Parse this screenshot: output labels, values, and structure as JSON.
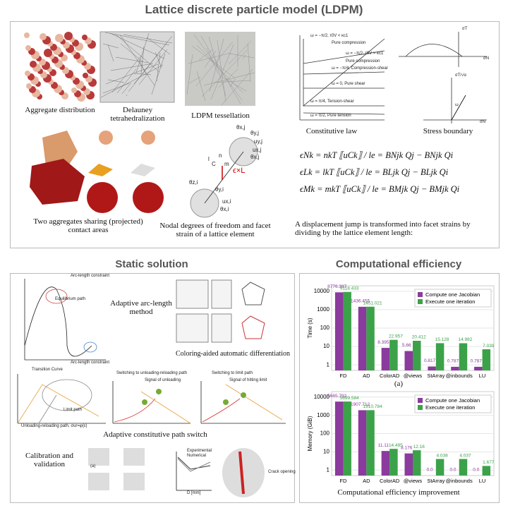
{
  "title": "Lattice discrete particle model (LDPM)",
  "ldpm": {
    "aggregate_distribution": "Aggregate distribution",
    "delauney": "Delauney tetrahedralization",
    "tessellation": "LDPM tessellation",
    "constitutive_law": "Constitutive law",
    "stress_boundary": "Stress boundary",
    "two_aggregates": "Two aggregates sharing (projected) contact areas",
    "nodal_dof": "Nodal degrees of freedom and facet strain of a lattice element",
    "law_labels": [
      "ω = −π/2, τ0V < κc1",
      "Pure compression",
      "ω = −π/2, τ0V > κc1",
      "Pure compression",
      "ω = −π/4, Compression-shear",
      "ω = 0, Pure shear",
      "ω = π/4, Tension-shear",
      "ω = π/2, Pure tension"
    ],
    "stress_labels": [
      "σT",
      "σN",
      "σT/√α",
      "σN",
      "ω"
    ],
    "element_labels": [
      "θx,j",
      "θy,j",
      "uy,j",
      "ux,j",
      "θx,j",
      "ϵ×L",
      "θz,i",
      "θy,i",
      "ux,i",
      "θx,i",
      "l",
      "n",
      "C",
      "m"
    ],
    "equations": [
      "ϵNk = nkT ⟦uCk⟧ / le = BNjk Qj − BNjk Qi",
      "ϵLk = lkT ⟦uCk⟧ / le = BLjk Qj − BLjk Qi",
      "ϵMk = mkT ⟦uCk⟧ / le = BMjk Qj − BMjk Qi"
    ],
    "note": "A displacement jump is transformed into facet strains by dividing by the lattice element length:"
  },
  "static_solution": {
    "title": "Static solution",
    "arc_length": "Adaptive arc-length method",
    "coloring": "Coloring-aided automatic differentiation",
    "path_switch": "Adaptive constitutive path switch",
    "calibration": "Calibration and validation",
    "small_labels": [
      "Arc-length constraint",
      "Equilibrium path",
      "Arc-length constraint",
      "Transition Curve",
      "Limit path",
      "Unloading-reloading path, σur=φ(ε)",
      "Switching to unloading-reloading path",
      "Signal of unloading",
      "Switching to limit path",
      "Signal of hitting limit",
      "Experimental",
      "Numerical",
      "D [mm]",
      "Crack opening",
      "(a)"
    ]
  },
  "computational_efficiency": {
    "title": "Computational efficiency",
    "caption_a": "(a)",
    "caption": "Computational efficiency improvement",
    "chart_data": [
      {
        "type": "bar",
        "y_label": "Time (s)",
        "log_scale": true,
        "ylim": [
          0.5,
          20000
        ],
        "yticks": [
          1,
          10,
          100,
          1000,
          10000
        ],
        "legend": "upper right",
        "categories": [
          "FD",
          "AD",
          "ColorAD",
          "@views",
          "StArray",
          "@inbounds",
          "LU"
        ],
        "series": [
          {
            "name": "Compute one Jacobian",
            "color": "#8b3a9e",
            "values": [
              8776.387,
              1436.455,
              8.395,
              5.66,
              0.817,
              0.787,
              0.787
            ]
          },
          {
            "name": "Execute one iteration",
            "color": "#3ca24a",
            "values": [
              9118.433,
              1451.021,
              22.957,
              20.412,
              15.128,
              14.982,
              7.039
            ]
          }
        ]
      },
      {
        "type": "bar",
        "y_label": "Memory (GiB)",
        "log_scale": true,
        "ylim": [
          0.5,
          20000
        ],
        "yticks": [
          1,
          10,
          100,
          1000,
          10000
        ],
        "legend": "upper right",
        "categories": [
          "FD",
          "AD",
          "ColorAD",
          "@views",
          "StArray",
          "@inbounds",
          "LU"
        ],
        "series": [
          {
            "name": "Compute one Jacobian",
            "color": "#8b3a9e",
            "values": [
              5665.792,
              1907.712,
              11.11,
              8.176,
              0,
              0,
              0
            ],
            "value_labels": [
              "5665.792",
              "1907.712",
              "11.11",
              "8.176",
              "0.0",
              "0.0",
              "0.0"
            ]
          },
          {
            "name": "Execute one iteration",
            "color": "#3ca24a",
            "values": [
              5699.584,
              1910.784,
              14.495,
              12.16,
              4.038,
              4.037,
              1.677
            ],
            "value_labels": [
              "5699.584",
              "1910.784",
              "14.495",
              "12.16",
              "4.038",
              "4.037",
              "1.677"
            ]
          }
        ]
      }
    ]
  }
}
